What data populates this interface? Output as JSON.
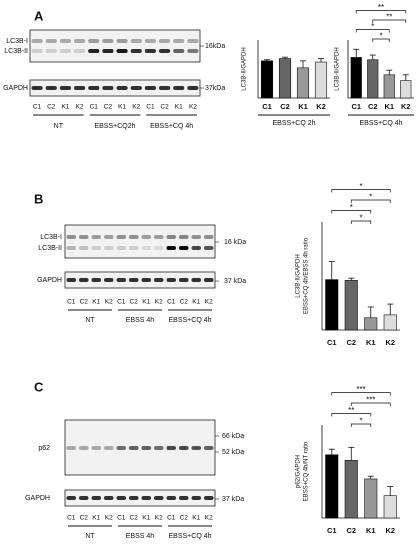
{
  "panels": [
    {
      "label": "A",
      "blots": [
        {
          "bands": [
            "LC3B-I",
            "LC3B-II"
          ],
          "markers": [
            "16kDa"
          ]
        },
        {
          "bands": [
            "GAPDH"
          ],
          "markers": [
            "37kDa"
          ]
        }
      ],
      "lanes": [
        "C1",
        "C2",
        "K1",
        "K2",
        "C1",
        "C2",
        "K1",
        "K2",
        "C1",
        "C2",
        "K1",
        "K2"
      ],
      "groups": [
        "NT",
        "EBSS+CQ2h",
        "EBSS+CQ 4h"
      ],
      "charts": [
        {
          "type": "bar",
          "y_label": [
            "LC3B-II/GAPDH"
          ],
          "categories": [
            "C1",
            "C2",
            "K1",
            "K2"
          ],
          "values": [
            1.6,
            1.7,
            1.3,
            1.55
          ],
          "errors": [
            0.05,
            0.06,
            0.3,
            0.15
          ],
          "colors": [
            "#000000",
            "#666666",
            "#999999",
            "#dddddd"
          ],
          "ylim": [
            0,
            2.5
          ],
          "x_label": "EBSS+CQ 2h",
          "comparisons": []
        },
        {
          "type": "bar",
          "y_label": [
            "LC3B-II/GAPDH"
          ],
          "categories": [
            "C1",
            "C2",
            "K1",
            "K2"
          ],
          "values": [
            1.75,
            1.65,
            1.0,
            0.75
          ],
          "errors": [
            0.35,
            0.2,
            0.2,
            0.25
          ],
          "colors": [
            "#000000",
            "#666666",
            "#999999",
            "#dddddd"
          ],
          "ylim": [
            0,
            2.5
          ],
          "x_label": "EBSS+CQ 4h",
          "comparisons": [
            {
              "groups": [
                "C1",
                "K2"
              ],
              "label": "**"
            },
            {
              "groups": [
                "C2",
                "K2"
              ],
              "label": "**"
            },
            {
              "groups": [
                "C1",
                "K1"
              ],
              "label": "*"
            },
            {
              "groups": [
                "C2",
                "K1"
              ],
              "label": "*"
            }
          ]
        }
      ]
    },
    {
      "label": "B",
      "blots": [
        {
          "bands": [
            "LC3B-I",
            "LC3B-II"
          ],
          "markers": [
            "16 kDa"
          ]
        },
        {
          "bands": [
            "GAPDH"
          ],
          "markers": [
            "37 kDa"
          ]
        }
      ],
      "lanes": [
        "C1",
        "C2",
        "K1",
        "K2",
        "C1",
        "C2",
        "K1",
        "K2",
        "C1",
        "C2",
        "K1",
        "K2"
      ],
      "groups": [
        "NT",
        "EBSS 4h",
        "EBSS+CQ 4h"
      ],
      "charts": [
        {
          "type": "bar",
          "y_label": [
            "LC3B-II/GAPDH",
            "EBSS+CQ 4h/EBSS 4h ratio"
          ],
          "categories": [
            "C1",
            "C2",
            "K1",
            "K2"
          ],
          "values": [
            7.0,
            6.9,
            1.7,
            2.1
          ],
          "errors": [
            2.5,
            0.3,
            1.5,
            1.5
          ],
          "colors": [
            "#000000",
            "#666666",
            "#999999",
            "#dddddd"
          ],
          "ylim": [
            0,
            15
          ],
          "comparisons": [
            {
              "groups": [
                "C1",
                "K2"
              ],
              "label": "*"
            },
            {
              "groups": [
                "C2",
                "K2"
              ],
              "label": "*"
            },
            {
              "groups": [
                "C1",
                "K1"
              ],
              "label": "*"
            },
            {
              "groups": [
                "C2",
                "K1"
              ],
              "label": "*"
            }
          ]
        }
      ]
    },
    {
      "label": "C",
      "blots": [
        {
          "bands": [
            "p62"
          ],
          "markers": [
            "66 kDa",
            "52 kDa"
          ]
        },
        {
          "bands": [
            "GAPDH"
          ],
          "markers": [
            "37 kDa"
          ]
        }
      ],
      "lanes": [
        "C1",
        "C2",
        "K1",
        "K2",
        "C1",
        "C2",
        "K1",
        "K2",
        "C1",
        "C2",
        "K1",
        "K2"
      ],
      "groups": [
        "NT",
        "EBSS 4h",
        "EBSS+CQ 4h"
      ],
      "charts": [
        {
          "type": "bar",
          "y_label": [
            "p62/GAPDH",
            "EBSS+CQ 4h/NT ratio"
          ],
          "categories": [
            "C1",
            "C2",
            "K1",
            "K2"
          ],
          "values": [
            3.4,
            3.1,
            2.1,
            1.2
          ],
          "errors": [
            0.3,
            0.7,
            0.15,
            0.5
          ],
          "colors": [
            "#000000",
            "#666666",
            "#999999",
            "#dddddd"
          ],
          "ylim": [
            0,
            5
          ],
          "comparisons": [
            {
              "groups": [
                "C1",
                "K2"
              ],
              "label": "***"
            },
            {
              "groups": [
                "C2",
                "K2"
              ],
              "label": "***"
            },
            {
              "groups": [
                "C1",
                "K1"
              ],
              "label": "**"
            },
            {
              "groups": [
                "C2",
                "K1"
              ],
              "label": "*"
            }
          ]
        }
      ]
    }
  ]
}
